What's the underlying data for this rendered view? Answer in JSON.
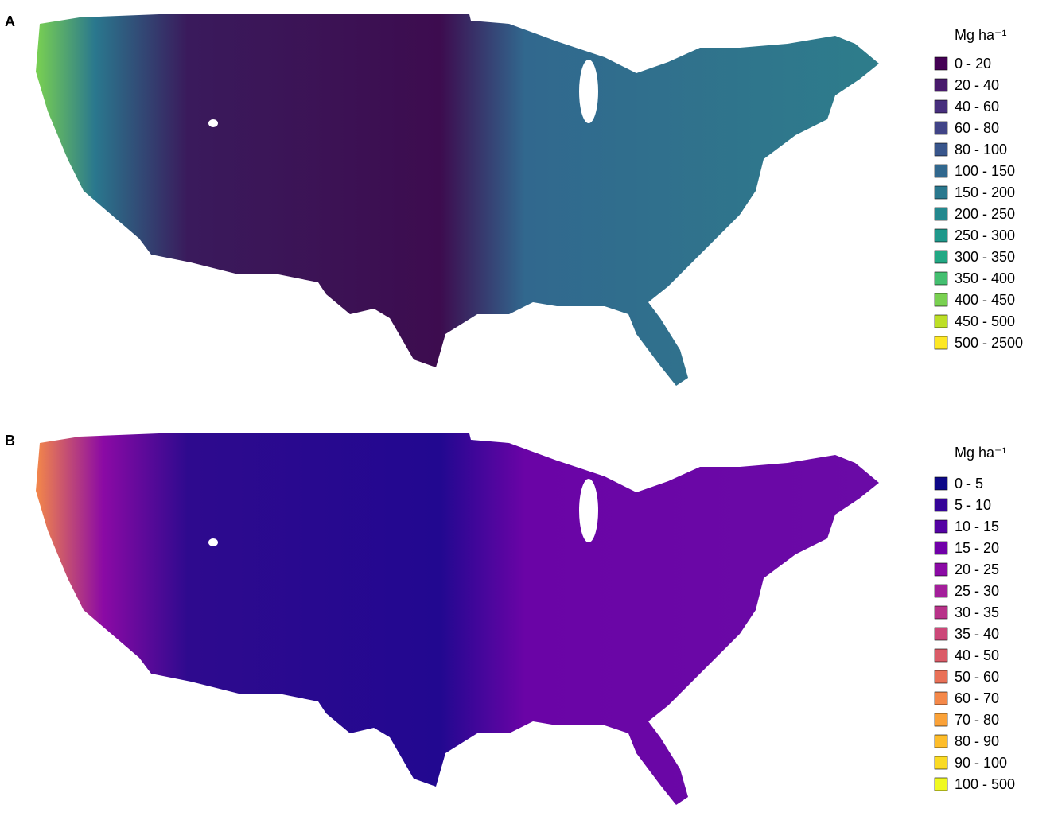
{
  "panels": [
    {
      "label": "A",
      "legend": {
        "title": "Mg ha⁻¹",
        "items": [
          {
            "label": "0 - 20",
            "color": "#440154"
          },
          {
            "label": "20 - 40",
            "color": "#481a6c"
          },
          {
            "label": "40 - 60",
            "color": "#472f7d"
          },
          {
            "label": "60 - 80",
            "color": "#414487"
          },
          {
            "label": "80 - 100",
            "color": "#39568c"
          },
          {
            "label": "100 - 150",
            "color": "#31688e"
          },
          {
            "label": "150 - 200",
            "color": "#2a788e"
          },
          {
            "label": "200 - 250",
            "color": "#23888e"
          },
          {
            "label": "250 - 300",
            "color": "#1f988b"
          },
          {
            "label": "300 - 350",
            "color": "#22a884"
          },
          {
            "label": "350 - 400",
            "color": "#44bf70"
          },
          {
            "label": "400 - 450",
            "color": "#7ad151"
          },
          {
            "label": "450 - 500",
            "color": "#bddf26"
          },
          {
            "label": "500 - 2500",
            "color": "#fde725"
          }
        ]
      }
    },
    {
      "label": "B",
      "legend": {
        "title": "Mg ha⁻¹",
        "items": [
          {
            "label": "0 - 5",
            "color": "#0d0887"
          },
          {
            "label": "5 - 10",
            "color": "#350498"
          },
          {
            "label": "10 - 15",
            "color": "#5402a3"
          },
          {
            "label": "15 - 20",
            "color": "#7000a8"
          },
          {
            "label": "20 - 25",
            "color": "#8b0aa5"
          },
          {
            "label": "25 - 30",
            "color": "#a31e9a"
          },
          {
            "label": "30 - 35",
            "color": "#b83289"
          },
          {
            "label": "35 - 40",
            "color": "#cc4778"
          },
          {
            "label": "40 - 50",
            "color": "#db5c68"
          },
          {
            "label": "50 - 60",
            "color": "#e97158"
          },
          {
            "label": "60 - 70",
            "color": "#f48849"
          },
          {
            "label": "70 - 80",
            "color": "#fba238"
          },
          {
            "label": "80 - 90",
            "color": "#febd2a"
          },
          {
            "label": "90 - 100",
            "color": "#fada24"
          },
          {
            "label": "100 - 500",
            "color": "#f0f921"
          }
        ]
      }
    }
  ]
}
